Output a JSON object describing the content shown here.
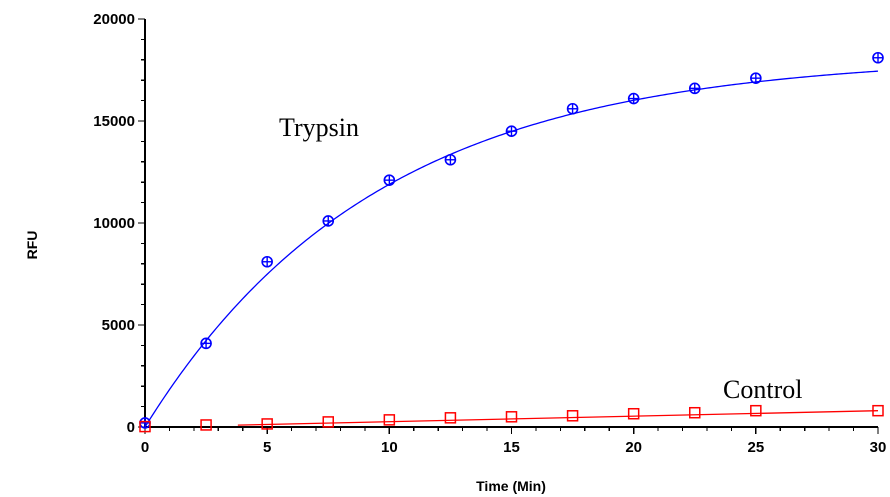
{
  "chart_data": {
    "type": "scatter",
    "title": "",
    "xlabel": "Time (Min)",
    "ylabel": "RFU",
    "xlim": [
      0,
      30
    ],
    "ylim": [
      0,
      20000
    ],
    "xticks": [
      0,
      5,
      10,
      15,
      20,
      25,
      30
    ],
    "yticks": [
      0,
      5000,
      10000,
      15000,
      20000
    ],
    "grid": false,
    "legend": "none",
    "series": [
      {
        "name": "Trypsin",
        "color": "#0000ff",
        "marker": "circle-with-cross",
        "x": [
          0,
          2.5,
          5,
          7.5,
          10,
          12.5,
          15,
          17.5,
          20,
          22.5,
          25,
          30
        ],
        "y": [
          200,
          4100,
          8100,
          10100,
          12100,
          13100,
          14500,
          15600,
          16100,
          16600,
          17100,
          18100
        ],
        "fit": {
          "model": "exponential-rise",
          "ymax": 18200,
          "k": 0.106
        }
      },
      {
        "name": "Control",
        "color": "#ff0000",
        "marker": "square",
        "x": [
          0,
          2.5,
          5,
          7.5,
          10,
          12.5,
          15,
          17.5,
          20,
          22.5,
          25,
          30
        ],
        "y": [
          20,
          100,
          150,
          250,
          350,
          450,
          500,
          550,
          650,
          700,
          800,
          800
        ],
        "fit": {
          "model": "linear",
          "x_start": 3.8,
          "slope": 27,
          "intercept": -10
        }
      }
    ],
    "annotations": [
      "Trypsin",
      "Control"
    ]
  }
}
